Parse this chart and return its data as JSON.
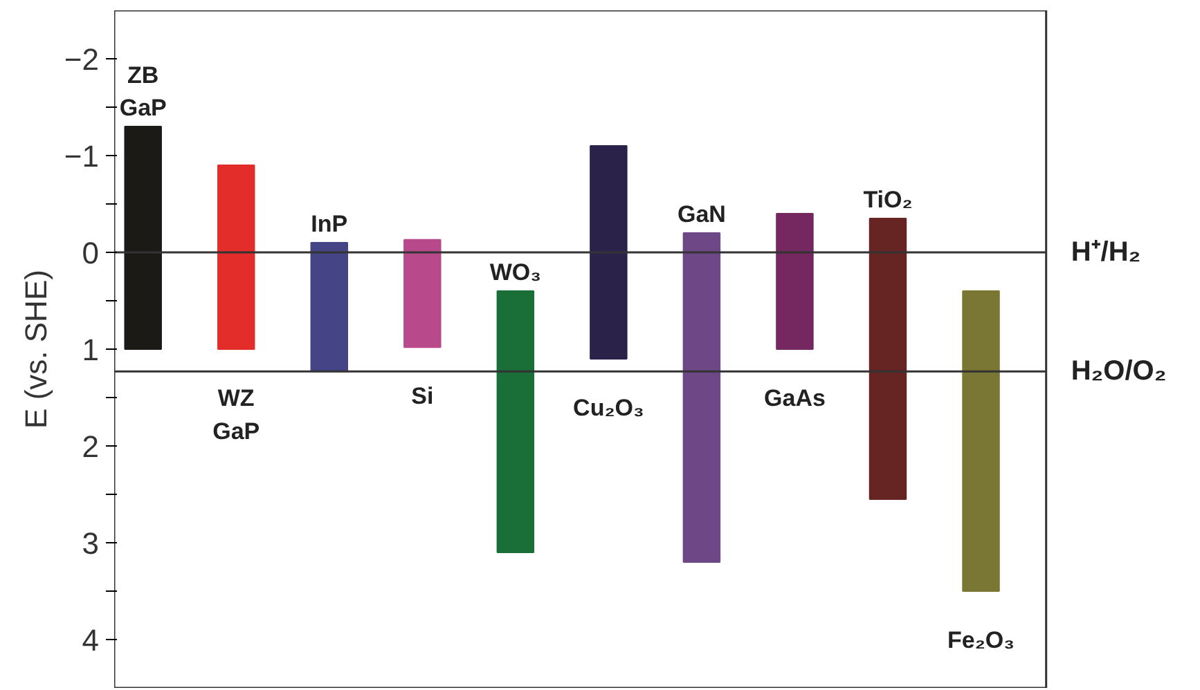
{
  "chart_data": {
    "type": "bar",
    "ylabel": "E (vs. SHE)",
    "categories": [
      "ZB\nGaP",
      "WZ\nGaP",
      "InP",
      "Si",
      "WO₃",
      "Cu₂O₃",
      "GaN",
      "GaAs",
      "TiO₂",
      "Fe₂O₃"
    ],
    "base": [
      -1.3,
      -0.9,
      -0.1,
      -0.13,
      0.4,
      -1.1,
      -0.2,
      -0.4,
      -0.35,
      0.4
    ],
    "values": [
      2.3,
      1.9,
      1.33,
      1.11,
      2.7,
      2.2,
      3.4,
      1.4,
      2.9,
      3.1
    ],
    "colors": [
      "#1c1a17",
      "#e32d2b",
      "#444486",
      "#b84a8c",
      "#1a6f39",
      "#2b224a",
      "#6e4787",
      "#74285f",
      "#662422",
      "#7a7633"
    ],
    "ylim": [
      4.5,
      -2.5
    ],
    "yticks": [
      -2,
      {
        "value": -1.5,
        "label": null
      },
      -1,
      {
        "value": -0.5,
        "label": null
      },
      0,
      {
        "value": 0.5,
        "label": null
      },
      1,
      {
        "value": 1.5,
        "label": null
      },
      2,
      {
        "value": 2.5,
        "label": null
      },
      3,
      {
        "value": 3.5,
        "label": null
      },
      4
    ],
    "ref_lines": [
      {
        "axis": "y",
        "value": 0,
        "label": "H⁺/H₂"
      },
      {
        "axis": "y",
        "value": 1.23,
        "label": "H₂O/O₂"
      }
    ],
    "tick_labels": "y",
    "grid": false
  }
}
